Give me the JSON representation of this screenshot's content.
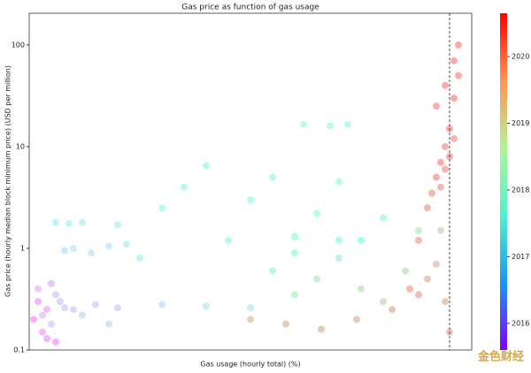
{
  "chart_data": {
    "type": "scatter",
    "title": "Gas price as function of gas usage",
    "xlabel": "Gas usage (hourly total) (%)",
    "ylabel": "Gas price (hourly median block minimum price) (USD per million)",
    "xlim": [
      0,
      100
    ],
    "ylim": [
      0.1,
      205
    ],
    "log_y": true,
    "yticks": [
      0.1,
      1,
      10,
      100
    ],
    "vline": 95,
    "colorbar": {
      "clim": [
        2015.6,
        2020.65
      ],
      "ticks": [
        2016,
        2017,
        2018,
        2019,
        2020
      ]
    },
    "series": [
      {
        "name": "hours",
        "x": [
          1,
          2,
          3,
          4,
          5,
          6,
          2,
          3,
          5,
          7,
          4,
          6,
          8,
          10,
          12,
          15,
          18,
          20,
          8,
          10,
          14,
          18,
          22,
          6,
          9,
          12,
          20,
          25,
          30,
          35,
          40,
          45,
          50,
          55,
          60,
          65,
          70,
          75,
          30,
          40,
          50,
          60,
          70,
          80,
          62,
          68,
          72,
          55,
          60,
          65,
          70,
          75,
          80,
          85,
          88,
          50,
          58,
          66,
          74,
          82,
          88,
          90,
          92,
          86,
          88,
          90,
          91,
          92,
          93,
          94,
          95,
          96,
          97,
          93,
          94,
          95,
          96,
          92,
          94,
          96,
          97,
          95,
          94,
          93
        ],
        "values": [
          0.2,
          0.3,
          0.15,
          0.25,
          0.45,
          0.12,
          0.4,
          0.22,
          0.18,
          0.3,
          0.13,
          0.35,
          0.26,
          0.25,
          0.22,
          0.28,
          0.18,
          0.26,
          0.95,
          1.0,
          0.9,
          1.05,
          1.1,
          1.8,
          1.75,
          1.8,
          1.7,
          0.8,
          2.5,
          4,
          6.5,
          1.2,
          3,
          5,
          1.3,
          2.2,
          4.5,
          1.2,
          0.28,
          0.27,
          0.26,
          0.9,
          1.2,
          2.0,
          16.5,
          16,
          16.5,
          0.6,
          0.35,
          0.5,
          0.8,
          0.4,
          0.3,
          0.6,
          1.5,
          0.2,
          0.18,
          0.16,
          0.2,
          0.25,
          0.35,
          0.5,
          0.7,
          0.4,
          1.2,
          2.5,
          3.5,
          5,
          7,
          10,
          15,
          30,
          50,
          4,
          6,
          8,
          12,
          25,
          40,
          70,
          100,
          0.15,
          0.3,
          1.5
        ],
        "years": [
          2015.8,
          2015.9,
          2016,
          2016.1,
          2016.2,
          2015.8,
          2016.3,
          2016.4,
          2016.5,
          2016.6,
          2015.9,
          2016.5,
          2016.7,
          2016.6,
          2016.8,
          2016.7,
          2016.9,
          2016.6,
          2017.0,
          2017.1,
          2017.0,
          2017.1,
          2017.2,
          2017.3,
          2017.4,
          2017.3,
          2017.4,
          2017.5,
          2017.6,
          2017.7,
          2017.6,
          2017.9,
          2017.8,
          2017.7,
          2018.0,
          2017.8,
          2017.6,
          2018.1,
          2016.9,
          2017.0,
          2017.1,
          2018.2,
          2018.3,
          2018.4,
          2017.6,
          2017.7,
          2017.6,
          2018.6,
          2018.9,
          2019.0,
          2018.8,
          2019.2,
          2019.4,
          2019.3,
          2019.0,
          2019.8,
          2019.9,
          2020.0,
          2019.9,
          2020.1,
          2020.2,
          2020.0,
          2019.8,
          2020.3,
          2020.2,
          2020.3,
          2020.4,
          2020.5,
          2020.5,
          2020.4,
          2020.5,
          2020.6,
          2020.5,
          2020.3,
          2020.4,
          2020.5,
          2020.4,
          2020.5,
          2020.6,
          2020.6,
          2020.6,
          2020.1,
          2020.0,
          2019.5
        ]
      }
    ]
  },
  "watermark": "金色财经"
}
